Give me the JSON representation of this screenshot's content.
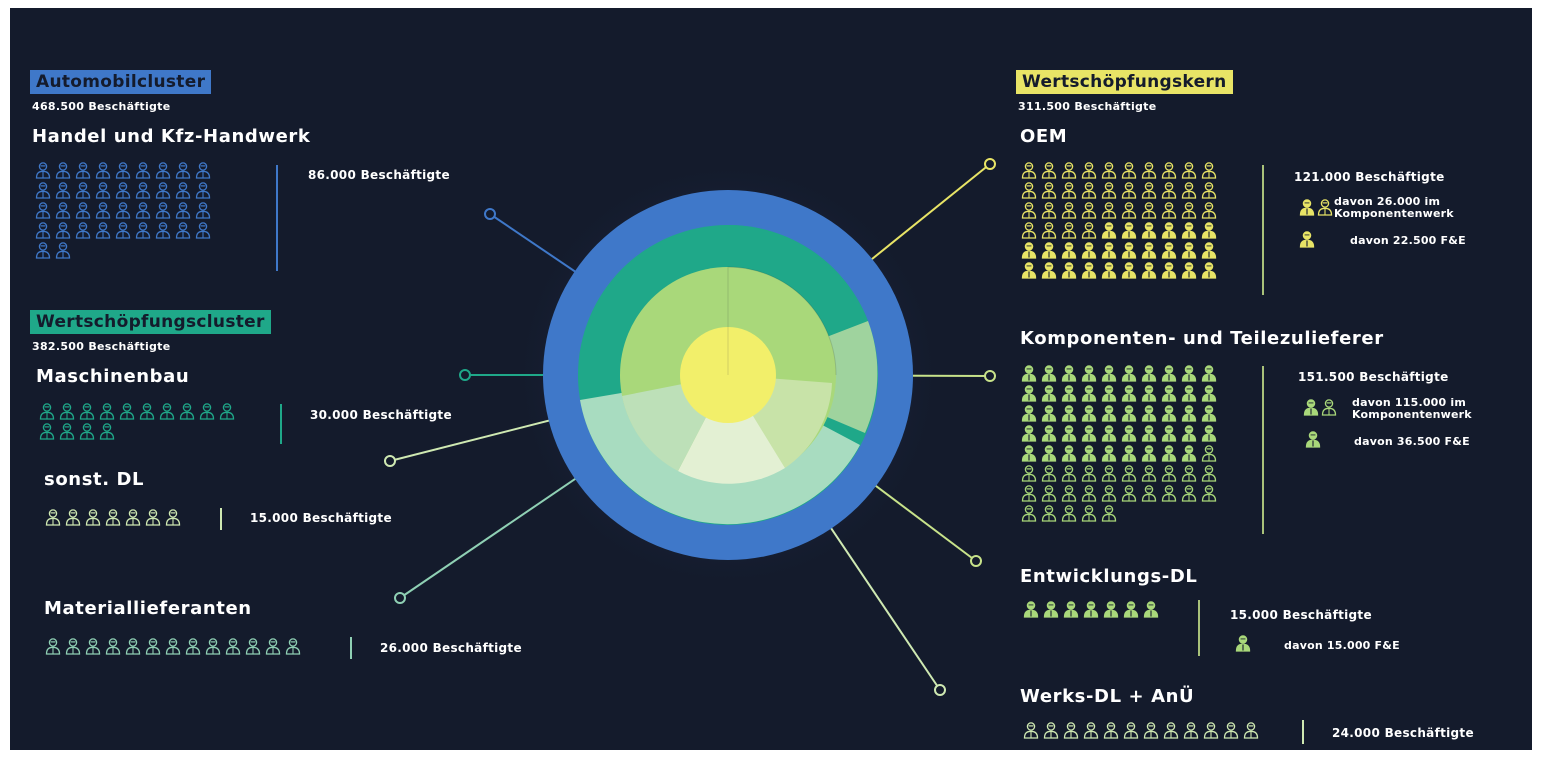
{
  "colors": {
    "background": "#141b2c",
    "blue": "#3f78c9",
    "teal": "#1fa889",
    "yellow": "#e8e466",
    "light_green": "#a9d87a",
    "pale_green": "#cfe9b2"
  },
  "left": {
    "automobilcluster": {
      "label": "Automobilcluster",
      "total": "468.500 Beschäftigte",
      "section": {
        "title": "Handel und Kfz-Handwerk",
        "count": "86.000 Beschäftigte",
        "icon": "person-icon",
        "icons": 38
      }
    },
    "wertschoepfungscluster": {
      "label": "Wertschöpfungscluster",
      "total": "382.500 Beschäftigte",
      "sections": [
        {
          "title": "Maschinenbau",
          "count": "30.000 Beschäftigte",
          "icon": "person-icon",
          "icons": 14
        },
        {
          "title": "sonst. DL",
          "count": "15.000 Beschäftigte",
          "icon": "person-icon",
          "icons": 7
        },
        {
          "title": "Materiallieferanten",
          "count": "26.000 Beschäftigte",
          "icon": "person-icon",
          "icons": 13
        }
      ]
    }
  },
  "right": {
    "wertschoepfungskern": {
      "label": "Wertschöpfungskern",
      "total": "311.500 Beschäftigte",
      "sections": [
        {
          "title": "OEM",
          "count": "121.000 Beschäftigte",
          "sub1": [
            "davon 26.000 im",
            "Komponentenwerk"
          ],
          "sub2": "davon 22.500 F&E",
          "icons": 60
        },
        {
          "title": "Komponenten- und Teilezulieferer",
          "count": "151.500 Beschäftigte",
          "sub1": [
            "davon 115.000 im",
            "Komponentenwerk"
          ],
          "sub2": "davon 36.500 F&E",
          "icons": 75
        },
        {
          "title": "Entwicklungs-DL",
          "count": "15.000 Beschäftigte",
          "sub2": "davon 15.000 F&E",
          "icons": 7
        },
        {
          "title": "Werks-DL + AnÜ",
          "count": "24.000 Beschäftigte",
          "icons": 12
        }
      ]
    }
  }
}
